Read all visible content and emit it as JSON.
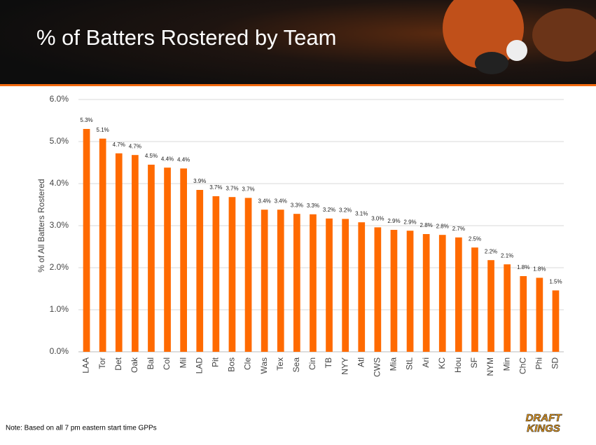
{
  "header": {
    "title": "% of Batters Rostered by Team"
  },
  "chart_data": {
    "type": "bar",
    "ylabel": "% of All Batters Rostered",
    "categories": [
      "LAA",
      "Tor",
      "Det",
      "Oak",
      "Bal",
      "Col",
      "Mil",
      "LAD",
      "Pit",
      "Bos",
      "Cle",
      "Was",
      "Tex",
      "Sea",
      "Cin",
      "TB",
      "NYY",
      "Atl",
      "CWS",
      "Mia",
      "StL",
      "Ari",
      "KC",
      "Hou",
      "SF",
      "NYM",
      "Min",
      "ChC",
      "Phi",
      "SD"
    ],
    "values": [
      5.3,
      5.07,
      4.72,
      4.68,
      4.45,
      4.38,
      4.36,
      3.85,
      3.7,
      3.68,
      3.66,
      3.38,
      3.38,
      3.28,
      3.27,
      3.17,
      3.16,
      3.08,
      2.96,
      2.9,
      2.88,
      2.8,
      2.78,
      2.72,
      2.48,
      2.18,
      2.08,
      1.8,
      1.76,
      1.46
    ],
    "value_labels": [
      "5.3%",
      "5.1%",
      "4.7%",
      "4.7%",
      "4.5%",
      "4.4%",
      "4.4%",
      "3.9%",
      "3.7%",
      "3.7%",
      "3.7%",
      "3.4%",
      "3.4%",
      "3.3%",
      "3.3%",
      "3.2%",
      "3.2%",
      "3.1%",
      "3.0%",
      "2.9%",
      "2.9%",
      "2.8%",
      "2.8%",
      "2.7%",
      "2.5%",
      "2.2%",
      "2.1%",
      "1.8%",
      "1.8%",
      "1.5%"
    ],
    "color": "#ff6a00",
    "ylim": [
      0,
      6
    ],
    "yticks": [
      {
        "value": 0,
        "label": "0.0%"
      },
      {
        "value": 1,
        "label": "1.0%"
      },
      {
        "value": 2,
        "label": "2.0%"
      },
      {
        "value": 3,
        "label": "3.0%"
      },
      {
        "value": 4,
        "label": "4.0%"
      },
      {
        "value": 5,
        "label": "5.0%"
      },
      {
        "value": 6,
        "label": "6.0%"
      }
    ],
    "grid": true
  },
  "footer": {
    "note": "Note: Based on all 7 pm eastern start time GPPs",
    "logo": [
      "DRAFT",
      "KINGS"
    ]
  }
}
